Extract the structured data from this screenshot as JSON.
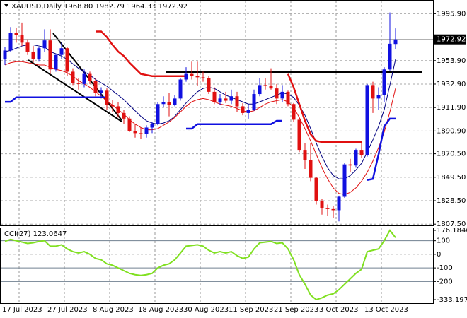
{
  "chart_data": [
    {
      "type": "candlestick",
      "title": "XAUUSD,Daily",
      "subtitle": "1968.80 1982.79 1964.33 1972.92",
      "categories": [
        "17 Jul 2023",
        null,
        null,
        null,
        null,
        null,
        null,
        null,
        "27 Jul 2023",
        null,
        null,
        null,
        null,
        null,
        null,
        null,
        "8 Aug 2023",
        null,
        null,
        null,
        null,
        null,
        null,
        null,
        "18 Aug 2023",
        null,
        null,
        null,
        null,
        null,
        null,
        null,
        "30 Aug 2023",
        null,
        null,
        null,
        null,
        null,
        null,
        null,
        "11 Sep 2023",
        null,
        null,
        null,
        null,
        null,
        null,
        null,
        "21 Sep 2023",
        null,
        null,
        null,
        null,
        null,
        null,
        null,
        "3 Oct 2023",
        null,
        null,
        null,
        null,
        null,
        null,
        null,
        "13 Oct 2023",
        null,
        null,
        null,
        null,
        null
      ],
      "ohlc": [
        [
          1955,
          1966,
          1950,
          1963
        ],
        [
          1963,
          1984,
          1962,
          1979
        ],
        [
          1979,
          1983,
          1970,
          1977
        ],
        [
          1977,
          1988,
          1967,
          1970
        ],
        [
          1970,
          1973,
          1959,
          1962
        ],
        [
          1962,
          1967,
          1952,
          1955
        ],
        [
          1955,
          1966,
          1953,
          1965
        ],
        [
          1965,
          1982,
          1962,
          1972
        ],
        [
          1972,
          1982,
          1942,
          1946
        ],
        [
          1946,
          1960,
          1944,
          1959
        ],
        [
          1959,
          1970,
          1955,
          1965
        ],
        [
          1965,
          1966,
          1940,
          1944
        ],
        [
          1944,
          1947,
          1932,
          1934
        ],
        [
          1934,
          1938,
          1928,
          1933
        ],
        [
          1933,
          1946,
          1930,
          1942
        ],
        [
          1942,
          1944,
          1933,
          1936
        ],
        [
          1936,
          1938,
          1922,
          1925
        ],
        [
          1925,
          1930,
          1920,
          1927
        ],
        [
          1927,
          1929,
          1910,
          1914
        ],
        [
          1914,
          1919,
          1908,
          1913
        ],
        [
          1913,
          1917,
          1903,
          1907
        ],
        [
          1907,
          1910,
          1897,
          1902
        ],
        [
          1902,
          1904,
          1890,
          1891
        ],
        [
          1891,
          1897,
          1885,
          1889
        ],
        [
          1889,
          1894,
          1884,
          1888
        ],
        [
          1888,
          1896,
          1885,
          1894
        ],
        [
          1894,
          1899,
          1889,
          1897
        ],
        [
          1897,
          1917,
          1896,
          1915
        ],
        [
          1915,
          1922,
          1912,
          1917
        ],
        [
          1917,
          1925,
          1904,
          1914
        ],
        [
          1914,
          1923,
          1913,
          1920
        ],
        [
          1920,
          1938,
          1918,
          1937
        ],
        [
          1937,
          1948,
          1935,
          1942
        ],
        [
          1942,
          1953,
          1937,
          1940
        ],
        [
          1940,
          1953,
          1931,
          1939
        ],
        [
          1939,
          1944,
          1935,
          1938
        ],
        [
          1938,
          1940,
          1924,
          1926
        ],
        [
          1926,
          1930,
          1915,
          1917
        ],
        [
          1917,
          1924,
          1914,
          1920
        ],
        [
          1920,
          1926,
          1916,
          1918
        ],
        [
          1918,
          1928,
          1915,
          1922
        ],
        [
          1922,
          1926,
          1908,
          1913
        ],
        [
          1913,
          1916,
          1905,
          1907
        ],
        [
          1907,
          1915,
          1902,
          1910
        ],
        [
          1910,
          1928,
          1909,
          1924
        ],
        [
          1924,
          1938,
          1922,
          1932
        ],
        [
          1932,
          1938,
          1928,
          1931
        ],
        [
          1931,
          1947,
          1928,
          1929
        ],
        [
          1929,
          1933,
          1915,
          1920
        ],
        [
          1920,
          1932,
          1917,
          1926
        ],
        [
          1926,
          1927,
          1913,
          1915
        ],
        [
          1915,
          1916,
          1899,
          1901
        ],
        [
          1901,
          1903,
          1872,
          1874
        ],
        [
          1874,
          1880,
          1857,
          1865
        ],
        [
          1865,
          1880,
          1846,
          1849
        ],
        [
          1849,
          1850,
          1825,
          1828
        ],
        [
          1828,
          1830,
          1816,
          1822
        ],
        [
          1822,
          1825,
          1815,
          1821
        ],
        [
          1821,
          1824,
          1813,
          1820
        ],
        [
          1820,
          1833,
          1810,
          1832
        ],
        [
          1832,
          1862,
          1831,
          1861
        ],
        [
          1861,
          1866,
          1854,
          1860
        ],
        [
          1860,
          1875,
          1858,
          1874
        ],
        [
          1874,
          1880,
          1867,
          1869
        ],
        [
          1869,
          1933,
          1868,
          1932
        ],
        [
          1932,
          1935,
          1907,
          1920
        ],
        [
          1920,
          1930,
          1910,
          1923
        ],
        [
          1923,
          1948,
          1917,
          1946
        ],
        [
          1946,
          1997,
          1945,
          1969
        ],
        [
          1968.8,
          1982.79,
          1964.33,
          1972.92
        ]
      ],
      "up_color": "#1010e0",
      "down_color": "#e01010",
      "series": [
        {
          "color": "#000080",
          "width": 1,
          "values": [
            1962,
            1963,
            1965,
            1967,
            1968,
            1968,
            1967,
            1966,
            1962,
            1960,
            1958,
            1955,
            1951,
            1947,
            1944,
            1941,
            1937,
            1934,
            1931,
            1927,
            1923,
            1919,
            1914,
            1909,
            1904,
            1900,
            1898,
            1897,
            1898,
            1900,
            1904,
            1910,
            1916,
            1921,
            1926,
            1929,
            1930,
            1929,
            1926,
            1923,
            1921,
            1919,
            1917,
            1915,
            1915,
            1917,
            1919,
            1921,
            1923,
            1925,
            1924,
            1921,
            1914,
            1905,
            1893,
            1880,
            1868,
            1858,
            1851,
            1848,
            1848,
            1851,
            1856,
            1862,
            1872,
            1883,
            1895,
            1910,
            1932,
            1955
          ]
        },
        {
          "color": "#e01010",
          "width": 1,
          "values": [
            1950,
            1952,
            1953,
            1953,
            1952,
            1951,
            1950,
            1950,
            1948,
            1946,
            1945,
            1943,
            1940,
            1936,
            1933,
            1930,
            1926,
            1922,
            1918,
            1914,
            1910,
            1906,
            1901,
            1897,
            1894,
            1892,
            1892,
            1893,
            1896,
            1899,
            1903,
            1908,
            1913,
            1917,
            1919,
            1920,
            1919,
            1917,
            1915,
            1914,
            1913,
            1911,
            1909,
            1908,
            1909,
            1912,
            1915,
            1917,
            1918,
            1919,
            1917,
            1912,
            1903,
            1893,
            1882,
            1870,
            1858,
            1848,
            1840,
            1835,
            1834,
            1836,
            1840,
            1846,
            1854,
            1864,
            1876,
            1890,
            1908,
            1929
          ]
        },
        {
          "color": "#e01010",
          "width": 2.5,
          "values": [
            null,
            null,
            null,
            null,
            null,
            null,
            null,
            null,
            null,
            null,
            null,
            null,
            null,
            null,
            null,
            null,
            1980,
            1980,
            1975,
            1968,
            1962,
            1958,
            1952,
            1947,
            1942,
            1941,
            1940,
            1940,
            1940,
            1940,
            1940,
            1940,
            1940,
            null,
            null,
            null,
            null,
            null,
            null,
            null,
            null,
            null,
            null,
            null,
            null,
            null,
            null,
            null,
            null,
            null,
            1942,
            1930,
            1915,
            1900,
            1888,
            1882,
            1881,
            1881,
            1881,
            1881,
            1881,
            1881,
            1881,
            1881,
            null,
            null,
            null,
            null,
            null,
            null
          ]
        },
        {
          "color": "#1010e0",
          "width": 2.5,
          "values": [
            1917,
            1917,
            1921,
            1921,
            1921,
            1921,
            1921,
            1921,
            1921,
            1921,
            1921,
            1921,
            1921,
            1921,
            1921,
            1921,
            1921,
            1921,
            1921,
            null,
            null,
            null,
            null,
            null,
            null,
            null,
            null,
            null,
            null,
            null,
            null,
            null,
            1893,
            1893,
            1897,
            1897,
            1897,
            1897,
            1897,
            1897,
            1897,
            1897,
            1897,
            1897,
            1897,
            1897,
            1897,
            1897,
            1900,
            1900,
            null,
            null,
            null,
            null,
            null,
            null,
            null,
            null,
            null,
            null,
            null,
            null,
            null,
            null,
            1847,
            1848,
            1870,
            1895,
            1902,
            1902
          ]
        }
      ],
      "ylim": [
        1807,
        2005
      ],
      "yticks": [
        {
          "value": 1995.9,
          "label": "1995.90"
        },
        {
          "value": 1953.9,
          "label": "1953.90"
        },
        {
          "value": 1932.9,
          "label": "1932.90"
        },
        {
          "value": 1911.9,
          "label": "1911.90"
        },
        {
          "value": 1890.9,
          "label": "1890.90"
        },
        {
          "value": 1870.5,
          "label": "1870.50"
        },
        {
          "value": 1849.5,
          "label": "1849.50"
        },
        {
          "value": 1828.5,
          "label": "1828.50"
        },
        {
          "value": 1807.5,
          "label": "1807.50"
        }
      ],
      "last_price": {
        "value": 1972.92,
        "label": "1972.92"
      },
      "grid": true
    },
    {
      "type": "line",
      "title": "CCI(27) 123.0647",
      "series": [
        {
          "color": "#80e020",
          "width": 2,
          "values": [
            95,
            110,
            100,
            90,
            80,
            85,
            95,
            100,
            60,
            60,
            70,
            40,
            20,
            10,
            20,
            0,
            -30,
            -40,
            -70,
            -80,
            -100,
            -120,
            -140,
            -150,
            -155,
            -150,
            -140,
            -100,
            -80,
            -70,
            -40,
            10,
            60,
            65,
            70,
            60,
            30,
            10,
            20,
            10,
            20,
            -10,
            -30,
            -20,
            40,
            85,
            90,
            95,
            80,
            85,
            40,
            -40,
            -150,
            -220,
            -300,
            -333.197,
            -320,
            -300,
            -290,
            -260,
            -220,
            -180,
            -140,
            -110,
            20,
            30,
            40,
            100,
            176.1846,
            123.0647
          ]
        }
      ],
      "ylim": [
        -333.197,
        176.1846
      ],
      "yticks": [
        176.1846,
        100,
        0,
        -100,
        -200,
        -333.197
      ],
      "grid": true
    }
  ]
}
